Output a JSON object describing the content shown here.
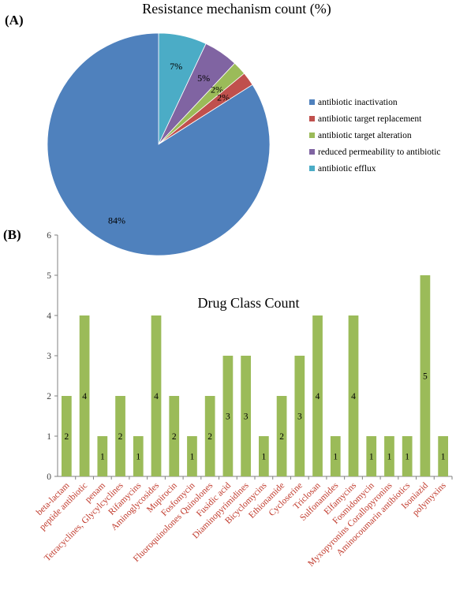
{
  "chart_data": [
    {
      "type": "pie",
      "panel_label": "(A)",
      "title": "Resistance mechanism count (%)",
      "legend_position": "right",
      "slices": [
        {
          "label": "antibiotic inactivation",
          "value": 84,
          "value_label": "84%",
          "color": "#4f81bd"
        },
        {
          "label": "antibiotic target replacement",
          "value": 2,
          "value_label": "2%",
          "color": "#c0504d"
        },
        {
          "label": "antibiotic target alteration",
          "value": 2,
          "value_label": "2%",
          "color": "#9bbb59"
        },
        {
          "label": "reduced permeability to antibiotic",
          "value": 5,
          "value_label": "5%",
          "color": "#8064a2"
        },
        {
          "label": "antibiotic efflux",
          "value": 7,
          "value_label": "7%",
          "color": "#4bacc6"
        }
      ]
    },
    {
      "type": "bar",
      "panel_label": "(B)",
      "title": "Drug Class Count",
      "ylim": [
        0,
        6
      ],
      "yticks": [
        0,
        1,
        2,
        3,
        4,
        5,
        6
      ],
      "grid": false,
      "bar_color": "#9bbb59",
      "label_color": "#c0392b",
      "categories": [
        "beta-lactam",
        "peptide antibiotic",
        "penam",
        "Tetracyclines, Glycylcyclines",
        "Rifamycins",
        "Aminoglycosides",
        "Mupirocin",
        "Fosfomycin",
        "Fluoroquinolones Quinolones",
        "Fusidic acid",
        "Diaminopyrimidines",
        "Bicyclomycins",
        "Ethionamide",
        "Cycloserine",
        "Triclosan",
        "Sulfonamides",
        "Elfamycins",
        "Fosmidomycin",
        "Myxopyronins Corallopyronins",
        "Aminocoumarin antibiotics",
        "Isoniazid",
        "polymyxins"
      ],
      "values": [
        2,
        4,
        1,
        2,
        1,
        4,
        2,
        1,
        2,
        3,
        3,
        1,
        2,
        3,
        4,
        1,
        4,
        1,
        1,
        1,
        5,
        1
      ]
    }
  ]
}
